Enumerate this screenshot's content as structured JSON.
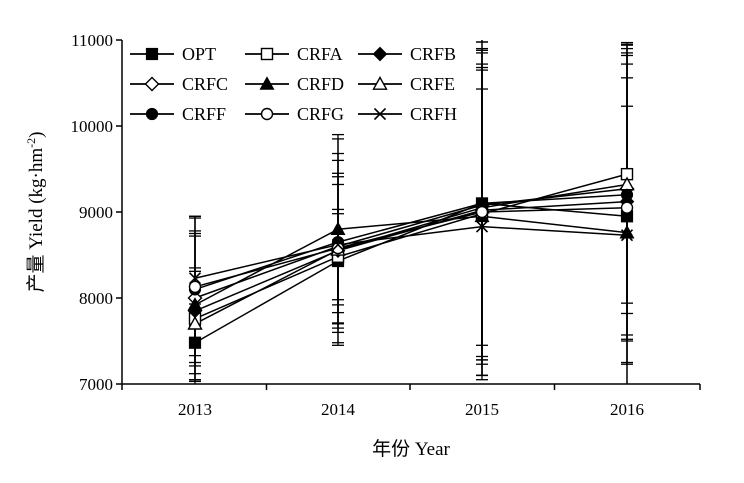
{
  "chart_data": {
    "type": "line",
    "title": "",
    "xlabel": "年份 Year",
    "ylabel_main": "产量 Yield (kg·hm",
    "ylabel_sup": "-2",
    "ylabel_close": ")",
    "categories": [
      "2013",
      "2014",
      "2015",
      "2016"
    ],
    "ylim": [
      7000,
      11000
    ],
    "yticks": [
      7000,
      8000,
      9000,
      10000,
      11000
    ],
    "ytick_labels": [
      "7000",
      "8000",
      "9000",
      "10000",
      "11000"
    ],
    "grid": false,
    "legend": "top-left, 3 columns",
    "series": [
      {
        "name": "OPT",
        "marker": "square-filled",
        "values": [
          7480,
          8430,
          9100,
          8950
        ],
        "err": [
          450,
          600,
          2000,
          2000
        ]
      },
      {
        "name": "CRFA",
        "marker": "square-open",
        "values": [
          7760,
          8480,
          8980,
          9440
        ],
        "err": [
          550,
          500,
          1700,
          1500
        ]
      },
      {
        "name": "CRFB",
        "marker": "diamond-filled",
        "values": [
          7850,
          8550,
          9020,
          9120
        ],
        "err": [
          900,
          900,
          1700,
          1600
        ]
      },
      {
        "name": "CRFC",
        "marker": "diamond-open",
        "values": [
          8000,
          8600,
          9080,
          9270
        ],
        "err": [
          950,
          1000,
          1800,
          1700
        ]
      },
      {
        "name": "CRFD",
        "marker": "triangle-filled",
        "values": [
          7920,
          8800,
          8950,
          8760
        ],
        "err": [
          800,
          1100,
          1900,
          1800
        ]
      },
      {
        "name": "CRFE",
        "marker": "triangle-open",
        "values": [
          7700,
          8560,
          9050,
          9320
        ],
        "err": [
          650,
          850,
          1600,
          1500
        ]
      },
      {
        "name": "CRFF",
        "marker": "circle-filled",
        "values": [
          8100,
          8650,
          9100,
          9200
        ],
        "err": [
          850,
          1200,
          2000,
          1700
        ]
      },
      {
        "name": "CRFG",
        "marker": "circle-open",
        "values": [
          8130,
          8580,
          9000,
          9050
        ],
        "err": [
          800,
          1100,
          1900,
          1800
        ]
      },
      {
        "name": "CRFH",
        "marker": "x",
        "values": [
          8230,
          8620,
          8830,
          8730
        ],
        "err": [
          550,
          700,
          1600,
          1500
        ]
      }
    ]
  }
}
